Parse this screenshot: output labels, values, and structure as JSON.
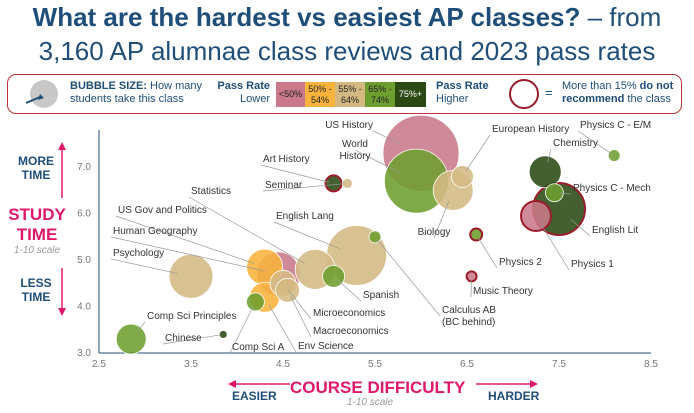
{
  "title": {
    "line1_bold": "What are the hardest vs easiest AP classes?",
    "line1_rest": " – from",
    "line2": "3,160 AP alumnae class reviews and 2023 pass rates"
  },
  "legend": {
    "bubble_size_bold": "BUBBLE SIZE:",
    "bubble_size_rest1": " How many",
    "bubble_size_rest2": "students take this class",
    "pass_rate_bold": "Pass Rate",
    "lower": "Lower",
    "higher": "Higher",
    "equals": "=",
    "recommend_pre": "More than 15% ",
    "recommend_bold1": "do not",
    "recommend_bold2": "recommend",
    "recommend_post": " the class",
    "bins": [
      {
        "label": "<50%",
        "color": "#c9798a"
      },
      {
        "label": "50% - 54%",
        "color": "#f7b33b"
      },
      {
        "label": "55% - 64%",
        "color": "#d4b983"
      },
      {
        "label": "65% - 74%",
        "color": "#6e9e2f"
      },
      {
        "label": "75%+",
        "color": "#2b4a13"
      }
    ]
  },
  "axes": {
    "y_more": "MORE TIME",
    "y_less": "LESS TIME",
    "y_main": "STUDY TIME",
    "y_scale": "1-10 scale",
    "x_main": "COURSE DIFFICULTY",
    "x_scale": "1-10 scale",
    "x_easier": "EASIER",
    "x_harder": "HARDER"
  },
  "chart_data": {
    "type": "scatter",
    "xlim": [
      2.5,
      8.5
    ],
    "ylim": [
      3.0,
      7.8
    ],
    "x_ticks": [
      "2.5",
      "3.5",
      "4.5",
      "5.5",
      "6.5",
      "7.5",
      "8.5"
    ],
    "y_ticks": [
      "3.0",
      "4.0",
      "5.0",
      "6.0",
      "7.0"
    ],
    "points": [
      {
        "name": "US History",
        "x": 6.0,
        "y": 7.3,
        "size": 38,
        "color": "#c9798a",
        "not_recommended": false
      },
      {
        "name": "World History",
        "x": 5.95,
        "y": 6.7,
        "size": 32,
        "color": "#6e9e2f",
        "not_recommended": false
      },
      {
        "name": "European History",
        "x": 6.45,
        "y": 6.8,
        "size": 11,
        "color": "#d4b983",
        "not_recommended": false
      },
      {
        "name": "Biology",
        "x": 6.35,
        "y": 6.5,
        "size": 20,
        "color": "#d4b983",
        "not_recommended": false
      },
      {
        "name": "Physics C - E/M",
        "x": 8.1,
        "y": 7.25,
        "size": 6,
        "color": "#6e9e2f",
        "not_recommended": false
      },
      {
        "name": "Chemistry",
        "x": 7.35,
        "y": 6.9,
        "size": 16,
        "color": "#2b4a13",
        "not_recommended": false
      },
      {
        "name": "Physics C - Mech",
        "x": 7.45,
        "y": 6.45,
        "size": 9,
        "color": "#6e9e2f",
        "not_recommended": false
      },
      {
        "name": "English Lit",
        "x": 7.5,
        "y": 6.1,
        "size": 26,
        "color": "#2b4a13",
        "not_recommended": true
      },
      {
        "name": "Physics 1",
        "x": 7.25,
        "y": 5.95,
        "size": 15,
        "color": "#c9798a",
        "not_recommended": true
      },
      {
        "name": "Physics 2",
        "x": 6.6,
        "y": 5.55,
        "size": 6,
        "color": "#6e9e2f",
        "not_recommended": true
      },
      {
        "name": "Music Theory",
        "x": 6.55,
        "y": 4.65,
        "size": 5,
        "color": "#c9798a",
        "not_recommended": true
      },
      {
        "name": "Art History",
        "x": 5.05,
        "y": 6.65,
        "size": 8,
        "color": "#2b4a13",
        "not_recommended": true
      },
      {
        "name": "Seminar",
        "x": 5.2,
        "y": 6.65,
        "size": 5,
        "color": "#d4b983",
        "not_recommended": false
      },
      {
        "name": "English Lang",
        "x": 5.3,
        "y": 5.1,
        "size": 30,
        "color": "#d4b983",
        "not_recommended": false
      },
      {
        "name": "Calculus AB (BC behind)",
        "x": 5.5,
        "y": 5.5,
        "size": 6,
        "color": "#6e9e2f",
        "not_recommended": false
      },
      {
        "name": "Spanish",
        "x": 5.05,
        "y": 4.65,
        "size": 11,
        "color": "#6e9e2f",
        "not_recommended": false
      },
      {
        "name": "Statistics",
        "x": 4.85,
        "y": 4.8,
        "size": 20,
        "color": "#d4b983",
        "not_recommended": false
      },
      {
        "name": "US Gov and Politics",
        "x": 4.3,
        "y": 4.85,
        "size": 18,
        "color": "#f7b33b",
        "not_recommended": false
      },
      {
        "name": "Human Geography",
        "x": 4.45,
        "y": 4.7,
        "size": 22,
        "color": "#c9798a",
        "not_recommended": false
      },
      {
        "name": "Microeconomics",
        "x": 4.5,
        "y": 4.5,
        "size": 13,
        "color": "#d4b983",
        "not_recommended": false
      },
      {
        "name": "Macroeconomics",
        "x": 4.55,
        "y": 4.35,
        "size": 12,
        "color": "#d4b983",
        "not_recommended": false
      },
      {
        "name": "Env Science",
        "x": 4.3,
        "y": 4.2,
        "size": 15,
        "color": "#f7b33b",
        "not_recommended": false
      },
      {
        "name": "Comp Sci A",
        "x": 4.2,
        "y": 4.1,
        "size": 9,
        "color": "#6e9e2f",
        "not_recommended": false
      },
      {
        "name": "Psychology",
        "x": 3.5,
        "y": 4.65,
        "size": 22,
        "color": "#d4b983",
        "not_recommended": false
      },
      {
        "name": "Comp Sci Principles",
        "x": 2.85,
        "y": 3.3,
        "size": 15,
        "color": "#6e9e2f",
        "not_recommended": false
      },
      {
        "name": "Chinese",
        "x": 3.85,
        "y": 3.4,
        "size": 4,
        "color": "#2b4a13",
        "not_recommended": false
      }
    ]
  }
}
